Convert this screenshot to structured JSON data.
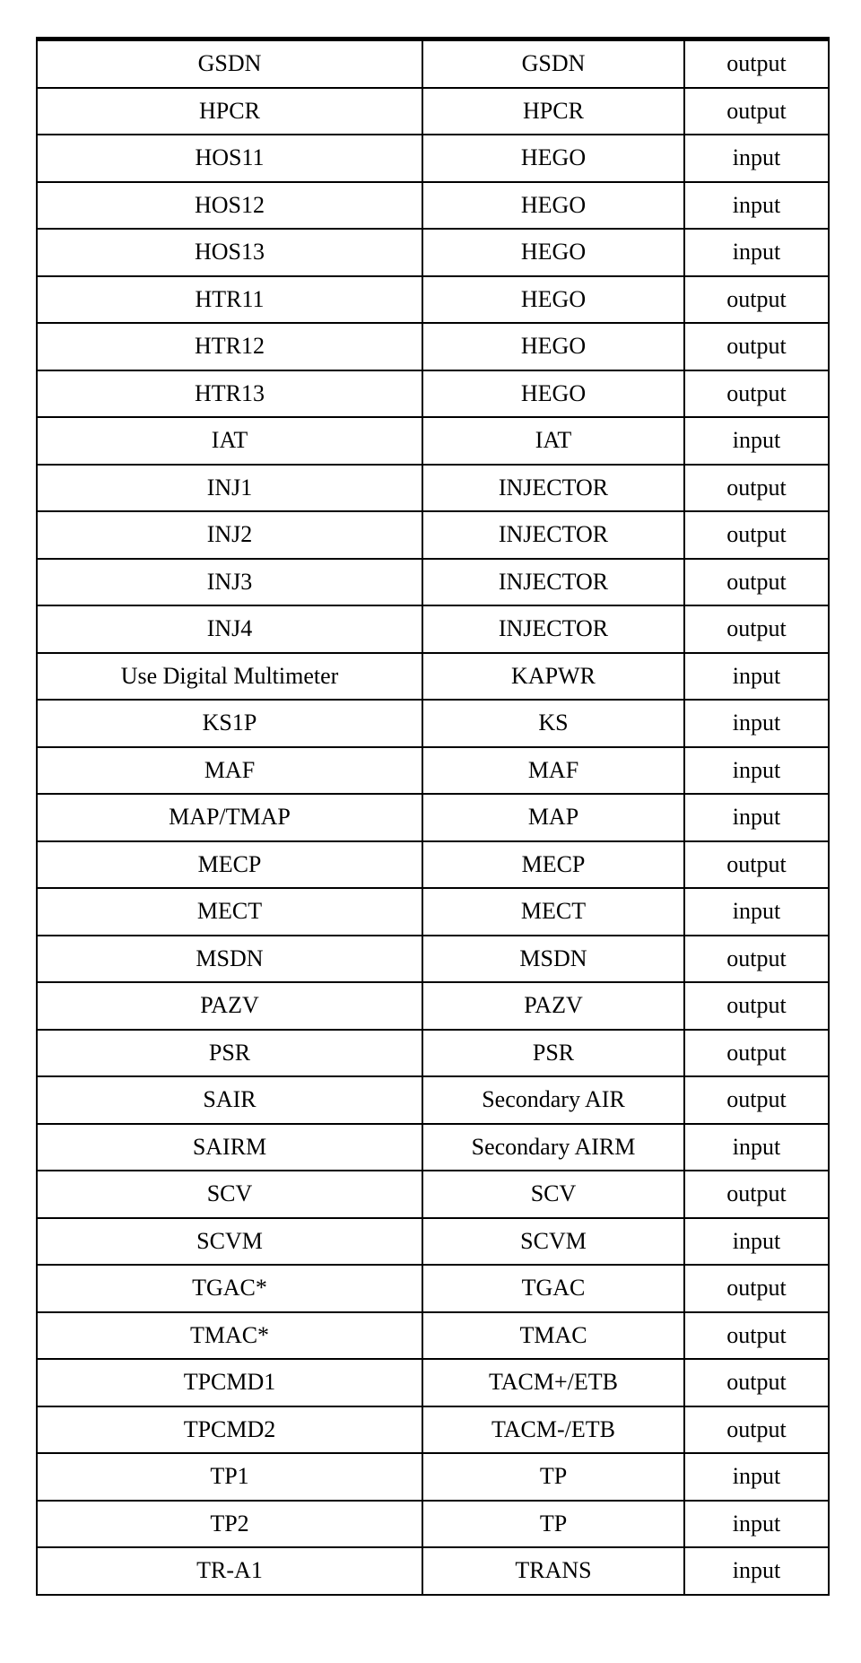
{
  "table": {
    "rows": [
      [
        "GSDN",
        "GSDN",
        "output"
      ],
      [
        "HPCR",
        "HPCR",
        "output"
      ],
      [
        "HOS11",
        "HEGO",
        "input"
      ],
      [
        "HOS12",
        "HEGO",
        "input"
      ],
      [
        "HOS13",
        "HEGO",
        "input"
      ],
      [
        "HTR11",
        "HEGO",
        "output"
      ],
      [
        "HTR12",
        "HEGO",
        "output"
      ],
      [
        "HTR13",
        "HEGO",
        "output"
      ],
      [
        "IAT",
        "IAT",
        "input"
      ],
      [
        "INJ1",
        "INJECTOR",
        "output"
      ],
      [
        "INJ2",
        "INJECTOR",
        "output"
      ],
      [
        "INJ3",
        "INJECTOR",
        "output"
      ],
      [
        "INJ4",
        "INJECTOR",
        "output"
      ],
      [
        "Use Digital Multimeter",
        "KAPWR",
        "input"
      ],
      [
        "KS1P",
        "KS",
        "input"
      ],
      [
        "MAF",
        "MAF",
        "input"
      ],
      [
        "MAP/TMAP",
        "MAP",
        "input"
      ],
      [
        "MECP",
        "MECP",
        "output"
      ],
      [
        "MECT",
        "MECT",
        "input"
      ],
      [
        "MSDN",
        "MSDN",
        "output"
      ],
      [
        "PAZV",
        "PAZV",
        "output"
      ],
      [
        "PSR",
        "PSR",
        "output"
      ],
      [
        "SAIR",
        "Secondary AIR",
        "output"
      ],
      [
        "SAIRM",
        "Secondary AIRM",
        "input"
      ],
      [
        "SCV",
        "SCV",
        "output"
      ],
      [
        "SCVM",
        "SCVM",
        "input"
      ],
      [
        "TGAC*",
        "TGAC",
        "output"
      ],
      [
        "TMAC*",
        "TMAC",
        "output"
      ],
      [
        "TPCMD1",
        "TACM+/ETB",
        "output"
      ],
      [
        "TPCMD2",
        "TACM-/ETB",
        "output"
      ],
      [
        "TP1",
        "TP",
        "input"
      ],
      [
        "TP2",
        "TP",
        "input"
      ],
      [
        "TR-A1",
        "TRANS",
        "input"
      ]
    ]
  }
}
